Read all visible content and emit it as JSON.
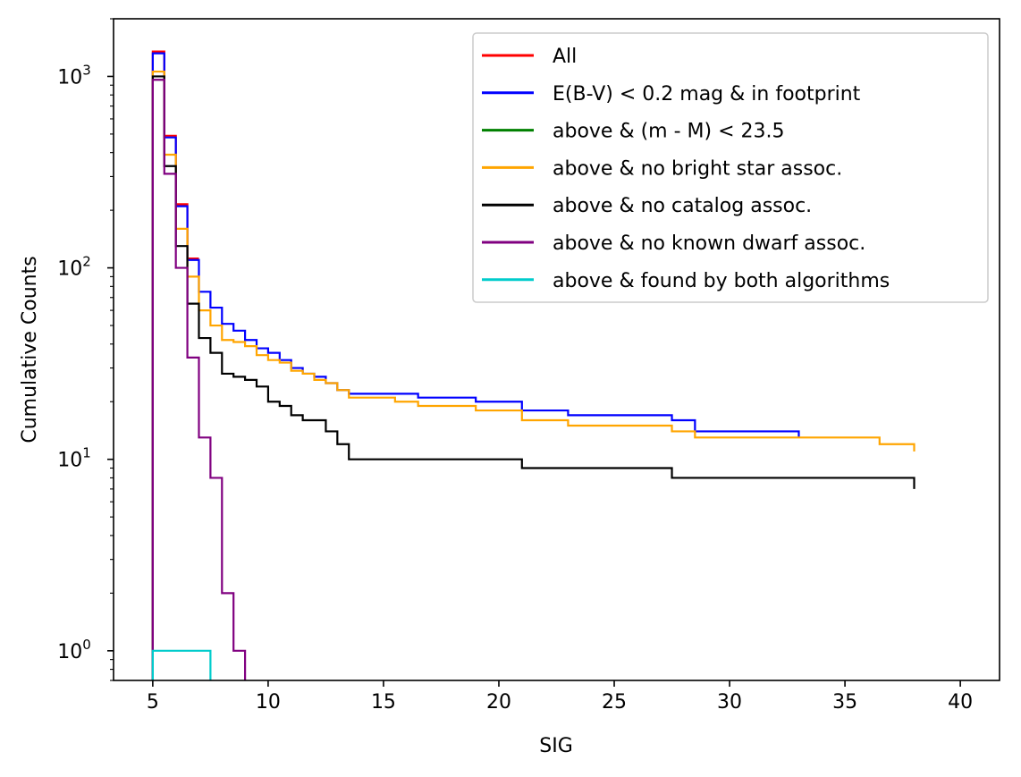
{
  "chart_data": {
    "type": "line",
    "style": "step-histogram",
    "xlabel": "SIG",
    "ylabel": "Cumulative Counts",
    "xlim": [
      3.3,
      41.7
    ],
    "ylim": [
      0.7,
      2000
    ],
    "yscale": "log",
    "grid": false,
    "legend_position": "top-right",
    "x_ticks": [
      5,
      10,
      15,
      20,
      25,
      30,
      35,
      40
    ],
    "x_tick_labels": [
      "5",
      "10",
      "15",
      "20",
      "25",
      "30",
      "35",
      "40"
    ],
    "y_ticks": [
      1,
      10,
      100,
      1000
    ],
    "y_tick_base": "10",
    "y_tick_exponents": [
      "0",
      "1",
      "2",
      "3"
    ],
    "series": [
      {
        "name": "All",
        "color": "#ff0000",
        "edges": [
          5.0,
          5.5,
          6.0,
          6.5,
          7.0
        ],
        "values": [
          1350,
          490,
          215,
          112
        ],
        "end": "open"
      },
      {
        "name": "E(B-V) < 0.2 mag & in footprint",
        "color": "#0000ff",
        "edges": [
          5.0,
          5.5,
          6.0,
          6.5,
          7.0,
          7.5,
          8.0,
          8.5,
          9.0,
          9.5,
          10.0,
          10.5,
          11.0,
          11.5,
          12.0,
          12.5,
          13.0,
          13.5,
          15.5,
          16.5,
          19.0,
          21.0,
          23.0,
          27.5,
          28.5,
          33.0
        ],
        "values": [
          1320,
          480,
          210,
          110,
          75,
          62,
          51,
          47,
          42,
          38,
          36,
          33,
          30,
          28,
          27,
          25,
          23,
          22,
          22,
          21,
          20,
          18,
          17,
          16,
          14,
          13
        ],
        "end": "open"
      },
      {
        "name": "above & (m - M) < 23.5",
        "color": "#008000",
        "edges": [],
        "values": [],
        "end": "open"
      },
      {
        "name": "above & no bright star assoc.",
        "color": "#ffa500",
        "edges": [
          5.0,
          5.5,
          6.0,
          6.5,
          7.0,
          7.5,
          8.0,
          8.5,
          9.0,
          9.5,
          10.0,
          10.5,
          11.0,
          11.5,
          12.0,
          12.5,
          13.0,
          13.5,
          15.5,
          16.5,
          19.0,
          21.0,
          23.0,
          27.5,
          28.5,
          36.5,
          38.0
        ],
        "values": [
          1060,
          390,
          160,
          90,
          60,
          50,
          42,
          41,
          39,
          35,
          33,
          32,
          29,
          28,
          26,
          25,
          23,
          21,
          20,
          19,
          18,
          16,
          15,
          14,
          13,
          12,
          11
        ],
        "end": "drop"
      },
      {
        "name": "above & no catalog assoc.",
        "color": "#000000",
        "edges": [
          5.0,
          5.5,
          6.0,
          6.5,
          7.0,
          7.5,
          8.0,
          8.5,
          9.0,
          9.5,
          10.0,
          10.5,
          11.0,
          11.5,
          12.5,
          13.0,
          13.5,
          21.0,
          27.5,
          38.0
        ],
        "values": [
          1000,
          340,
          130,
          65,
          43,
          36,
          28,
          27,
          26,
          24,
          20,
          19,
          17,
          16,
          14,
          12,
          10,
          9,
          8,
          7
        ],
        "end": "drop"
      },
      {
        "name": "above & no known dwarf assoc.",
        "color": "#800080",
        "edges": [
          5.0,
          5.5,
          6.0,
          6.5,
          7.0,
          7.5,
          8.0,
          8.5,
          9.0
        ],
        "values": [
          960,
          310,
          100,
          34,
          13,
          8,
          2,
          1
        ],
        "end": "drop"
      },
      {
        "name": "above & found by both algorithms",
        "color": "#00cccc",
        "edges": [
          5.0,
          7.5
        ],
        "values": [
          1
        ],
        "end": "drop"
      }
    ]
  }
}
